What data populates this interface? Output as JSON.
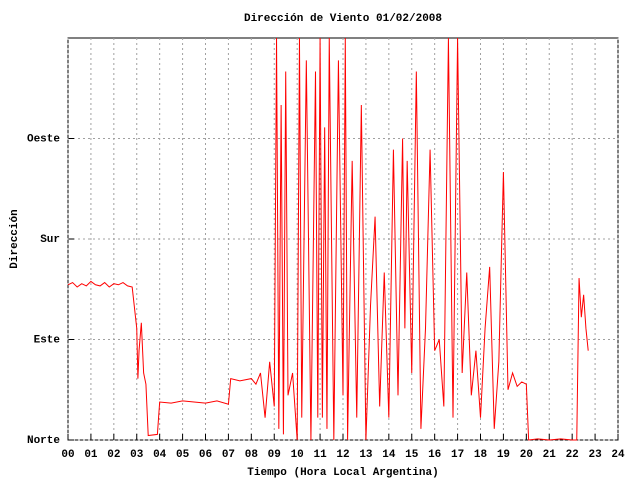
{
  "chart_data": {
    "type": "line",
    "title": "Dirección de Viento 01/02/2008",
    "x_label": "Tiempo (Hora Local Argentina)",
    "y_label": "Dirección",
    "xlim": [
      0,
      24
    ],
    "xticks": [
      {
        "value": 0,
        "label": "00"
      },
      {
        "value": 1,
        "label": "01"
      },
      {
        "value": 2,
        "label": "02"
      },
      {
        "value": 3,
        "label": "03"
      },
      {
        "value": 4,
        "label": "04"
      },
      {
        "value": 5,
        "label": "05"
      },
      {
        "value": 6,
        "label": "06"
      },
      {
        "value": 7,
        "label": "07"
      },
      {
        "value": 8,
        "label": "08"
      },
      {
        "value": 9,
        "label": "09"
      },
      10,
      11,
      12,
      13,
      14,
      15,
      16,
      17,
      18,
      19,
      20,
      21,
      22,
      23,
      24
    ],
    "ylim": [
      0,
      360
    ],
    "yticks": [
      {
        "value": 0,
        "label": "Norte"
      },
      {
        "value": 90,
        "label": "Este"
      },
      {
        "value": 180,
        "label": "Sur"
      },
      {
        "value": 270,
        "label": "Oeste"
      }
    ],
    "grid": true,
    "series": [
      {
        "color": "#ff0000",
        "x": [
          0,
          0.2,
          0.4,
          0.6,
          0.8,
          1.0,
          1.2,
          1.4,
          1.6,
          1.8,
          2.0,
          2.2,
          2.4,
          2.6,
          2.8,
          3.0,
          3.05,
          3.1,
          3.2,
          3.3,
          3.4,
          3.5,
          3.9,
          4.0,
          4.5,
          5.0,
          5.5,
          6.0,
          6.5,
          7.0,
          7.1,
          7.5,
          8.0,
          8.2,
          8.4,
          8.6,
          8.8,
          9.0,
          9.1,
          9.2,
          9.3,
          9.4,
          9.5,
          9.6,
          9.8,
          10.0,
          10.1,
          10.2,
          10.4,
          10.6,
          10.8,
          10.9,
          11.0,
          11.1,
          11.2,
          11.3,
          11.4,
          11.6,
          11.8,
          12.0,
          12.1,
          12.2,
          12.4,
          12.6,
          12.8,
          13.0,
          13.2,
          13.4,
          13.6,
          13.8,
          14.0,
          14.2,
          14.4,
          14.6,
          14.7,
          14.8,
          15.0,
          15.2,
          15.4,
          15.6,
          15.8,
          16.0,
          16.2,
          16.4,
          16.6,
          16.8,
          17.0,
          17.2,
          17.4,
          17.6,
          17.8,
          18.0,
          18.2,
          18.4,
          18.6,
          18.8,
          19.0,
          19.2,
          19.4,
          19.6,
          19.8,
          20.0,
          20.1,
          20.5,
          21.0,
          21.5,
          22.0,
          22.2,
          22.3,
          22.4,
          22.5,
          22.6,
          22.7
        ],
        "values": [
          139,
          141,
          137,
          140,
          138,
          142,
          139,
          138,
          141,
          137,
          140,
          139,
          141,
          138,
          137,
          100,
          55,
          80,
          105,
          60,
          50,
          4,
          5,
          34,
          33,
          35,
          34,
          33,
          35,
          32,
          55,
          53,
          55,
          50,
          60,
          20,
          70,
          30,
          360,
          10,
          300,
          5,
          330,
          40,
          60,
          0,
          360,
          20,
          340,
          0,
          330,
          20,
          360,
          20,
          280,
          10,
          360,
          0,
          340,
          40,
          360,
          0,
          250,
          20,
          300,
          0,
          120,
          200,
          30,
          150,
          20,
          260,
          40,
          270,
          100,
          250,
          60,
          330,
          10,
          100,
          260,
          80,
          90,
          30,
          360,
          20,
          360,
          60,
          150,
          40,
          80,
          20,
          100,
          155,
          10,
          70,
          240,
          45,
          60,
          48,
          52,
          50,
          0,
          1,
          0,
          1,
          0,
          0,
          145,
          110,
          130,
          100,
          80
        ]
      }
    ]
  }
}
